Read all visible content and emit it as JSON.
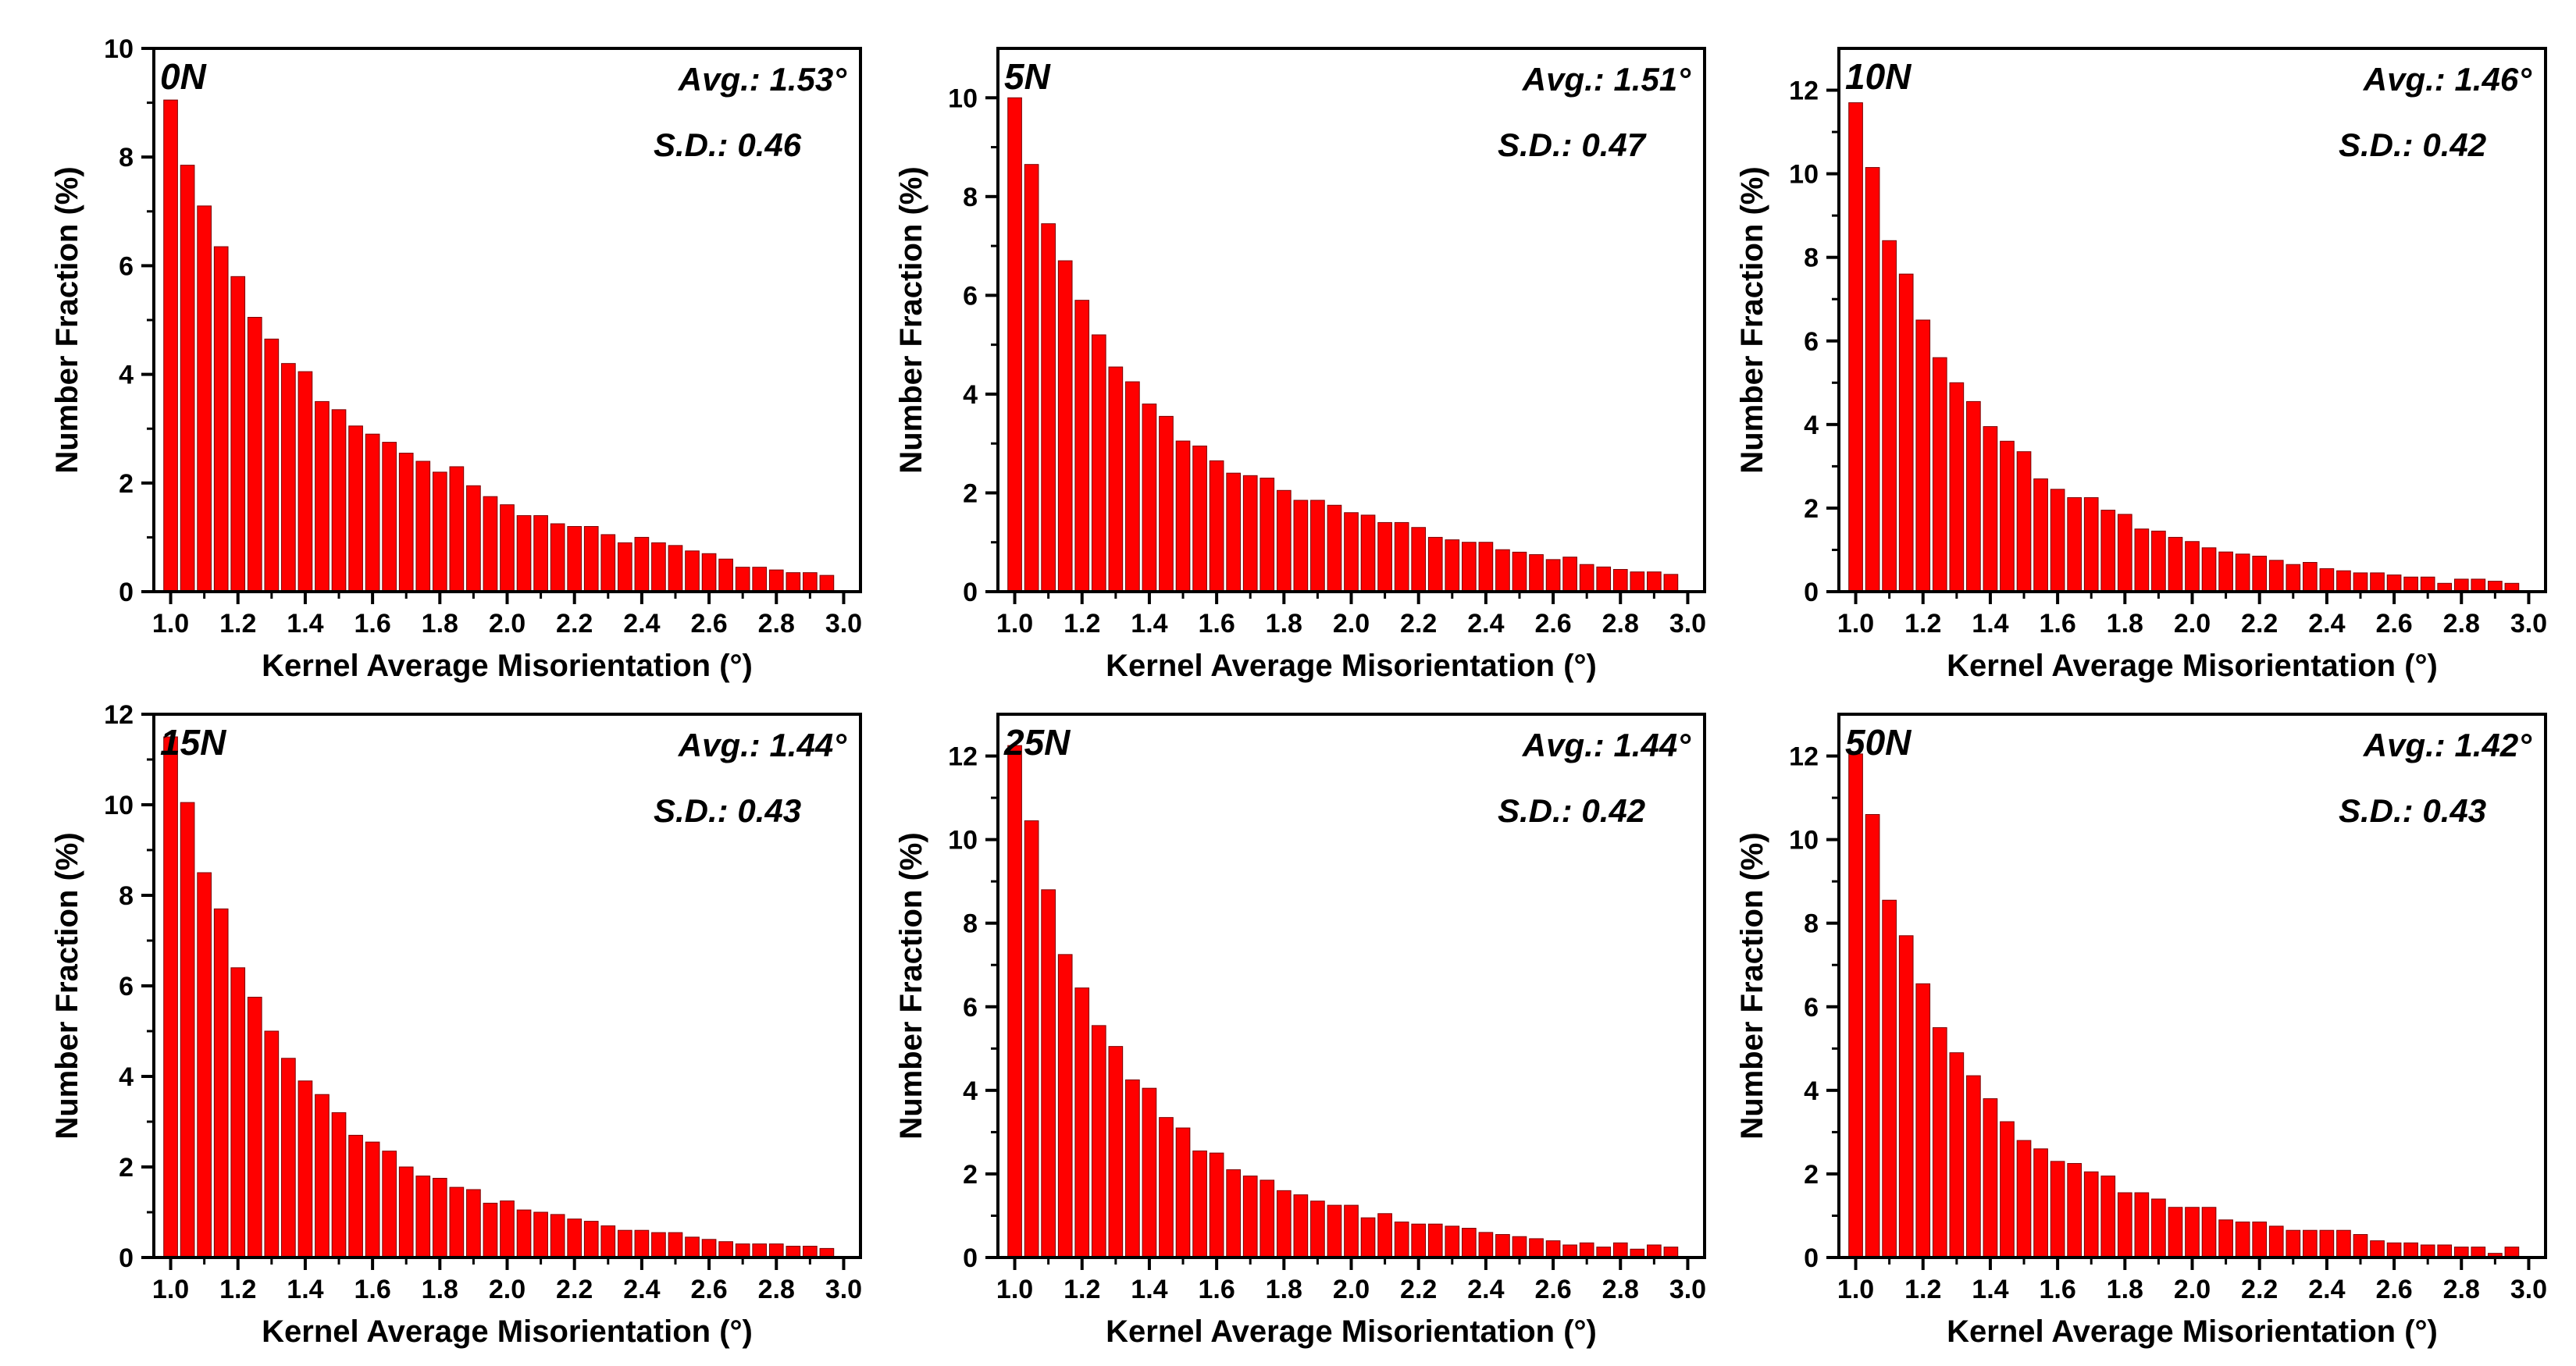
{
  "chart_data": [
    {
      "type": "bar",
      "panel_label": "0N",
      "avg_text": "Avg.: 1.53°",
      "sd_text": "S.D.: 0.46",
      "xlabel": "Kernel Average Misorientation (°)",
      "ylabel": "Number Fraction (%)",
      "xlim": [
        0.95,
        3.05
      ],
      "ylim": [
        0,
        10
      ],
      "yticks": [
        0,
        2,
        4,
        6,
        8,
        10
      ],
      "xticks": [
        "1.0",
        "1.2",
        "1.4",
        "1.6",
        "1.8",
        "2.0",
        "2.2",
        "2.4",
        "2.6",
        "2.8",
        "3.0"
      ],
      "x": [
        1.0,
        1.05,
        1.1,
        1.15,
        1.2,
        1.25,
        1.3,
        1.35,
        1.4,
        1.45,
        1.5,
        1.55,
        1.6,
        1.65,
        1.7,
        1.75,
        1.8,
        1.85,
        1.9,
        1.95,
        2.0,
        2.05,
        2.1,
        2.15,
        2.2,
        2.25,
        2.3,
        2.35,
        2.4,
        2.45,
        2.5,
        2.55,
        2.6,
        2.65,
        2.7,
        2.75,
        2.8,
        2.85,
        2.9,
        2.95
      ],
      "values": [
        9.05,
        7.85,
        7.1,
        6.35,
        5.8,
        5.05,
        4.65,
        4.2,
        4.05,
        3.5,
        3.35,
        3.05,
        2.9,
        2.75,
        2.55,
        2.4,
        2.2,
        2.3,
        1.95,
        1.75,
        1.6,
        1.4,
        1.4,
        1.25,
        1.2,
        1.2,
        1.05,
        0.9,
        1.0,
        0.9,
        0.85,
        0.75,
        0.7,
        0.6,
        0.45,
        0.45,
        0.4,
        0.35,
        0.35,
        0.3
      ]
    },
    {
      "type": "bar",
      "panel_label": "5N",
      "avg_text": "Avg.: 1.51°",
      "sd_text": "S.D.: 0.47",
      "xlabel": "Kernel Average Misorientation (°)",
      "ylabel": "Number Fraction (%)",
      "xlim": [
        0.95,
        3.05
      ],
      "ylim": [
        0,
        11
      ],
      "yticks": [
        0,
        2,
        4,
        6,
        8,
        10
      ],
      "xticks": [
        "1.0",
        "1.2",
        "1.4",
        "1.6",
        "1.8",
        "2.0",
        "2.2",
        "2.4",
        "2.6",
        "2.8",
        "3.0"
      ],
      "x": [
        1.0,
        1.05,
        1.1,
        1.15,
        1.2,
        1.25,
        1.3,
        1.35,
        1.4,
        1.45,
        1.5,
        1.55,
        1.6,
        1.65,
        1.7,
        1.75,
        1.8,
        1.85,
        1.9,
        1.95,
        2.0,
        2.05,
        2.1,
        2.15,
        2.2,
        2.25,
        2.3,
        2.35,
        2.4,
        2.45,
        2.5,
        2.55,
        2.6,
        2.65,
        2.7,
        2.75,
        2.8,
        2.85,
        2.9,
        2.95
      ],
      "values": [
        10.0,
        8.65,
        7.45,
        6.7,
        5.9,
        5.2,
        4.55,
        4.25,
        3.8,
        3.55,
        3.05,
        2.95,
        2.65,
        2.4,
        2.35,
        2.3,
        2.05,
        1.85,
        1.85,
        1.75,
        1.6,
        1.55,
        1.4,
        1.4,
        1.3,
        1.1,
        1.05,
        1.0,
        1.0,
        0.85,
        0.8,
        0.75,
        0.65,
        0.7,
        0.55,
        0.5,
        0.45,
        0.4,
        0.4,
        0.35
      ]
    },
    {
      "type": "bar",
      "panel_label": "10N",
      "avg_text": "Avg.: 1.46°",
      "sd_text": "S.D.: 0.42",
      "xlabel": "Kernel Average Misorientation (°)",
      "ylabel": "Number Fraction (%)",
      "xlim": [
        0.95,
        3.05
      ],
      "ylim": [
        0,
        13
      ],
      "yticks": [
        0,
        2,
        4,
        6,
        8,
        10,
        12
      ],
      "xticks": [
        "1.0",
        "1.2",
        "1.4",
        "1.6",
        "1.8",
        "2.0",
        "2.2",
        "2.4",
        "2.6",
        "2.8",
        "3.0"
      ],
      "x": [
        1.0,
        1.05,
        1.1,
        1.15,
        1.2,
        1.25,
        1.3,
        1.35,
        1.4,
        1.45,
        1.5,
        1.55,
        1.6,
        1.65,
        1.7,
        1.75,
        1.8,
        1.85,
        1.9,
        1.95,
        2.0,
        2.05,
        2.1,
        2.15,
        2.2,
        2.25,
        2.3,
        2.35,
        2.4,
        2.45,
        2.5,
        2.55,
        2.6,
        2.65,
        2.7,
        2.75,
        2.8,
        2.85,
        2.9,
        2.95
      ],
      "values": [
        11.7,
        10.15,
        8.4,
        7.6,
        6.5,
        5.6,
        5.0,
        4.55,
        3.95,
        3.6,
        3.35,
        2.7,
        2.45,
        2.25,
        2.25,
        1.95,
        1.85,
        1.5,
        1.45,
        1.3,
        1.2,
        1.05,
        0.95,
        0.9,
        0.85,
        0.75,
        0.65,
        0.7,
        0.55,
        0.5,
        0.45,
        0.45,
        0.4,
        0.35,
        0.35,
        0.2,
        0.3,
        0.3,
        0.25,
        0.2
      ]
    },
    {
      "type": "bar",
      "panel_label": "15N",
      "avg_text": "Avg.: 1.44°",
      "sd_text": "S.D.: 0.43",
      "xlabel": "Kernel Average Misorientation (°)",
      "ylabel": "Number Fraction (%)",
      "xlim": [
        0.95,
        3.05
      ],
      "ylim": [
        0,
        12
      ],
      "yticks": [
        0,
        2,
        4,
        6,
        8,
        10,
        12
      ],
      "xticks": [
        "1.0",
        "1.2",
        "1.4",
        "1.6",
        "1.8",
        "2.0",
        "2.2",
        "2.4",
        "2.6",
        "2.8",
        "3.0"
      ],
      "x": [
        1.0,
        1.05,
        1.1,
        1.15,
        1.2,
        1.25,
        1.3,
        1.35,
        1.4,
        1.45,
        1.5,
        1.55,
        1.6,
        1.65,
        1.7,
        1.75,
        1.8,
        1.85,
        1.9,
        1.95,
        2.0,
        2.05,
        2.1,
        2.15,
        2.2,
        2.25,
        2.3,
        2.35,
        2.4,
        2.45,
        2.5,
        2.55,
        2.6,
        2.65,
        2.7,
        2.75,
        2.8,
        2.85,
        2.9,
        2.95
      ],
      "values": [
        11.5,
        10.05,
        8.5,
        7.7,
        6.4,
        5.75,
        5.0,
        4.4,
        3.9,
        3.6,
        3.2,
        2.7,
        2.55,
        2.35,
        2.0,
        1.8,
        1.75,
        1.55,
        1.5,
        1.2,
        1.25,
        1.05,
        1.0,
        0.95,
        0.85,
        0.8,
        0.7,
        0.6,
        0.6,
        0.55,
        0.55,
        0.45,
        0.4,
        0.35,
        0.3,
        0.3,
        0.3,
        0.25,
        0.25,
        0.2
      ]
    },
    {
      "type": "bar",
      "panel_label": "25N",
      "avg_text": "Avg.: 1.44°",
      "sd_text": "S.D.: 0.42",
      "xlabel": "Kernel Average Misorientation (°)",
      "ylabel": "Number Fraction (%)",
      "xlim": [
        0.95,
        3.05
      ],
      "ylim": [
        0,
        13
      ],
      "yticks": [
        0,
        2,
        4,
        6,
        8,
        10,
        12
      ],
      "xticks": [
        "1.0",
        "1.2",
        "1.4",
        "1.6",
        "1.8",
        "2.0",
        "2.2",
        "2.4",
        "2.6",
        "2.8",
        "3.0"
      ],
      "x": [
        1.0,
        1.05,
        1.1,
        1.15,
        1.2,
        1.25,
        1.3,
        1.35,
        1.4,
        1.45,
        1.5,
        1.55,
        1.6,
        1.65,
        1.7,
        1.75,
        1.8,
        1.85,
        1.9,
        1.95,
        2.0,
        2.05,
        2.1,
        2.15,
        2.2,
        2.25,
        2.3,
        2.35,
        2.4,
        2.45,
        2.5,
        2.55,
        2.6,
        2.65,
        2.7,
        2.75,
        2.8,
        2.85,
        2.9,
        2.95
      ],
      "values": [
        12.25,
        10.45,
        8.8,
        7.25,
        6.45,
        5.55,
        5.05,
        4.25,
        4.05,
        3.35,
        3.1,
        2.55,
        2.5,
        2.1,
        1.95,
        1.85,
        1.6,
        1.5,
        1.35,
        1.25,
        1.25,
        0.95,
        1.05,
        0.85,
        0.8,
        0.8,
        0.75,
        0.7,
        0.6,
        0.55,
        0.5,
        0.45,
        0.4,
        0.3,
        0.35,
        0.25,
        0.35,
        0.2,
        0.3,
        0.25
      ]
    },
    {
      "type": "bar",
      "panel_label": "50N",
      "avg_text": "Avg.: 1.42°",
      "sd_text": "S.D.: 0.43",
      "xlabel": "Kernel Average Misorientation (°)",
      "ylabel": "Number Fraction (%)",
      "xlim": [
        0.95,
        3.05
      ],
      "ylim": [
        0,
        13
      ],
      "yticks": [
        0,
        2,
        4,
        6,
        8,
        10,
        12
      ],
      "xticks": [
        "1.0",
        "1.2",
        "1.4",
        "1.6",
        "1.8",
        "2.0",
        "2.2",
        "2.4",
        "2.6",
        "2.8",
        "3.0"
      ],
      "x": [
        1.0,
        1.05,
        1.1,
        1.15,
        1.2,
        1.25,
        1.3,
        1.35,
        1.4,
        1.45,
        1.5,
        1.55,
        1.6,
        1.65,
        1.7,
        1.75,
        1.8,
        1.85,
        1.9,
        1.95,
        2.0,
        2.05,
        2.1,
        2.15,
        2.2,
        2.25,
        2.3,
        2.35,
        2.4,
        2.45,
        2.5,
        2.55,
        2.6,
        2.65,
        2.7,
        2.75,
        2.8,
        2.85,
        2.9,
        2.95
      ],
      "values": [
        12.05,
        10.6,
        8.55,
        7.7,
        6.55,
        5.5,
        4.9,
        4.35,
        3.8,
        3.25,
        2.8,
        2.6,
        2.3,
        2.25,
        2.05,
        1.95,
        1.55,
        1.55,
        1.4,
        1.2,
        1.2,
        1.2,
        0.9,
        0.85,
        0.85,
        0.75,
        0.65,
        0.65,
        0.65,
        0.65,
        0.55,
        0.4,
        0.35,
        0.35,
        0.3,
        0.3,
        0.25,
        0.25,
        0.1,
        0.25
      ]
    }
  ]
}
